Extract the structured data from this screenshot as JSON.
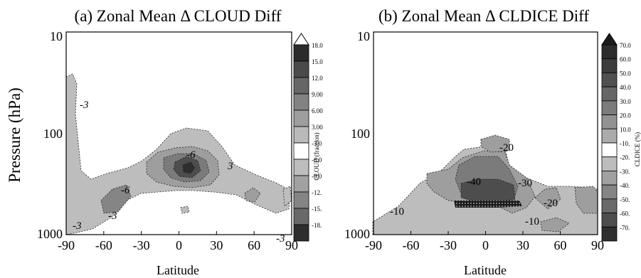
{
  "chart_data": [
    {
      "type": "contour",
      "title": "(a) Zonal Mean Δ CLOUD Diff",
      "xlabel": "Latitude",
      "ylabel": "Pressure (hPa)",
      "xticks": [
        "-90",
        "-60",
        "-30",
        "0",
        "30",
        "60",
        "90"
      ],
      "yticks": [
        "10",
        "100",
        "1000"
      ],
      "xlim": [
        -90,
        90
      ],
      "ylim": [
        1000,
        10
      ],
      "y_scale": "log",
      "colorbar_title": "CLOUD (fraction)",
      "colorbar_levels": [
        "18.0",
        "15.0",
        "12.0",
        "9.00",
        "6.00",
        "3.00",
        "-3.0",
        "-6.0",
        "-9.0",
        "-12.",
        "-15.",
        "-18."
      ],
      "contour_labels": [
        "-3",
        "-6",
        "-6",
        "-3",
        "3",
        "-3",
        "-3"
      ],
      "colors": {
        "pos_levels": [
          "#2b2b2b",
          "#4a4a4a",
          "#666666",
          "#828282",
          "#9e9e9e",
          "#bababa"
        ],
        "neg_levels": [
          "#bdbdbd",
          "#a1a1a1",
          "#858585",
          "#696969",
          "#4d4d4d",
          "#2e2e2e"
        ],
        "zero_band": "#ffffff"
      }
    },
    {
      "type": "contour",
      "title": "(b) Zonal Mean Δ CLDICE Diff",
      "xlabel": "Latitude",
      "ylabel": "",
      "xticks": [
        "-90",
        "-60",
        "-30",
        "0",
        "30",
        "60",
        "90"
      ],
      "yticks": [
        "10",
        "100",
        "1000"
      ],
      "xlim": [
        -90,
        90
      ],
      "ylim": [
        1000,
        10
      ],
      "y_scale": "log",
      "colorbar_title": "CLDICE (%)",
      "colorbar_levels": [
        "70.0",
        "60.0",
        "50.0",
        "40.0",
        "30.0",
        "20.0",
        "10.0",
        "-10.",
        "-20.",
        "-30.",
        "-40.",
        "-50.",
        "-60.",
        "-70."
      ],
      "contour_labels": [
        "-20",
        "-40",
        "-30",
        "-20",
        "-10",
        "-10"
      ]
    }
  ]
}
